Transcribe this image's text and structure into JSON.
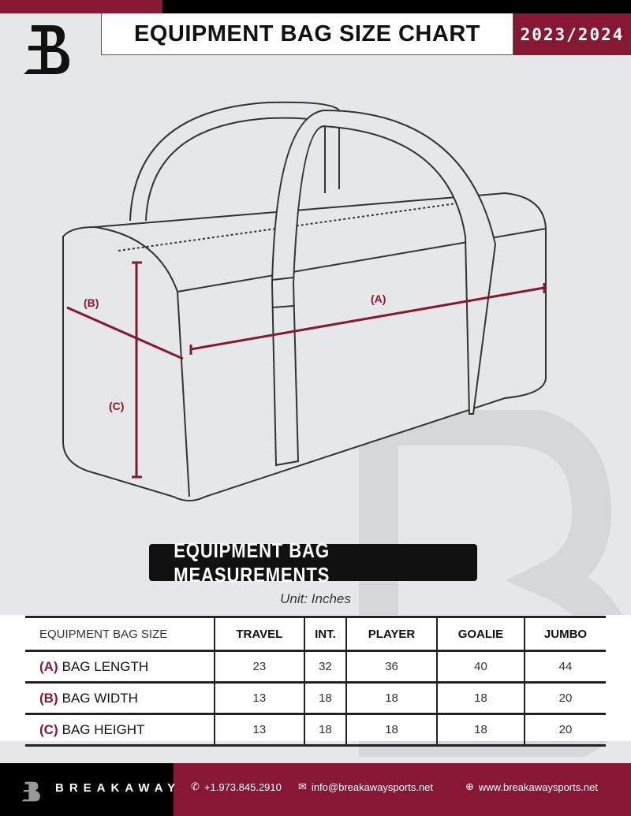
{
  "header": {
    "title": "EQUIPMENT BAG SIZE CHART",
    "season": "2023/2024"
  },
  "diagram": {
    "labels": {
      "a": "(A)",
      "b": "(B)",
      "c": "(C)"
    }
  },
  "section_title": "EQUIPMENT BAG MEASUREMENTS",
  "unit": "Unit: Inches",
  "table": {
    "corner": "EQUIPMENT BAG SIZE",
    "columns": [
      "TRAVEL",
      "INT.",
      "PLAYER",
      "GOALIE",
      "JUMBO"
    ],
    "rows": [
      {
        "key": "(A)",
        "label": "BAG LENGTH",
        "values": [
          "23",
          "32",
          "36",
          "40",
          "44"
        ]
      },
      {
        "key": "(B)",
        "label": "BAG WIDTH",
        "values": [
          "13",
          "18",
          "18",
          "18",
          "20"
        ]
      },
      {
        "key": "(C)",
        "label": "BAG HEIGHT",
        "values": [
          "13",
          "18",
          "18",
          "18",
          "20"
        ]
      }
    ]
  },
  "footer": {
    "brand": "BREAKAWAY",
    "phone": "+1.973.845.2910",
    "email": "info@breakawaysports.net",
    "website": "www.breakawaysports.net"
  },
  "colors": {
    "brand": "#861735",
    "background": "#e6e7e8"
  }
}
